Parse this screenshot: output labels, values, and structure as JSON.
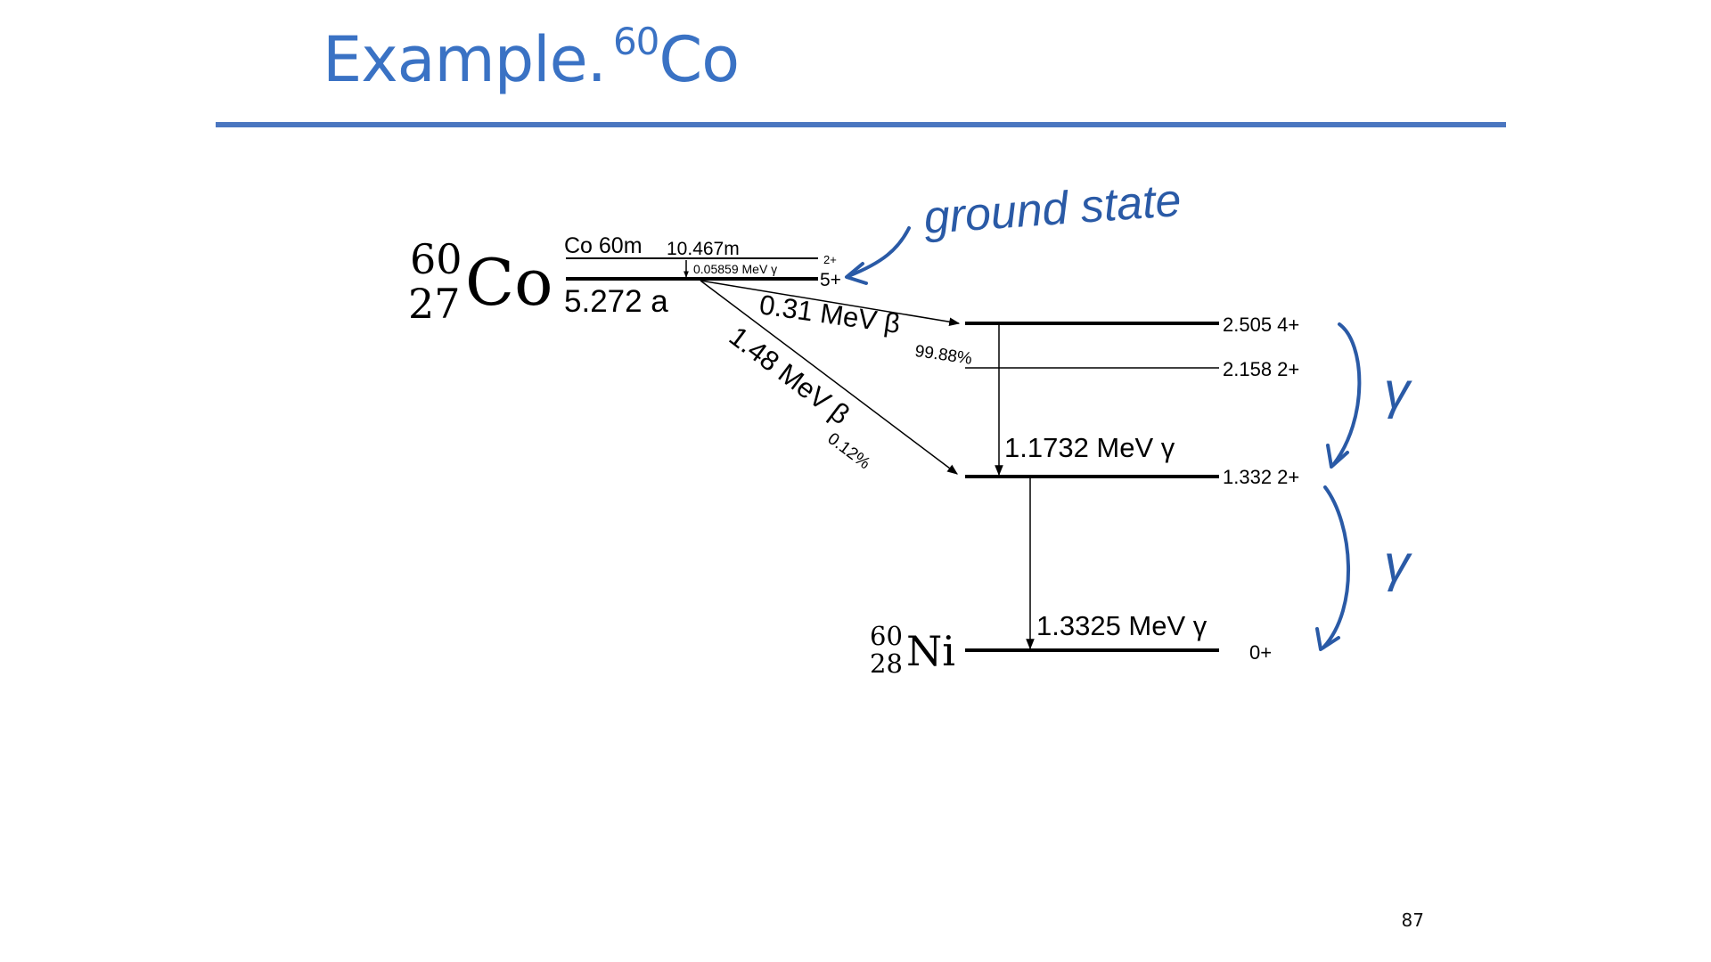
{
  "slide": {
    "title_text": "Example.",
    "title_superscript": "60",
    "title_element": "Co",
    "page_number": "87"
  },
  "parent": {
    "mass_number": "60",
    "atomic_number": "27",
    "symbol": "Co",
    "metastable_label": "Co 60m",
    "metastable_halflife": "10.467m",
    "metastable_spin": "2+",
    "it_transition": "0.05859 MeV γ",
    "ground_spin": "5+",
    "ground_halflife": "5.272 a"
  },
  "daughter": {
    "mass_number": "60",
    "atomic_number": "28",
    "symbol": "Ni"
  },
  "levels": [
    {
      "label": "2.505 4+"
    },
    {
      "label": "2.158 2+"
    },
    {
      "label": "1.332 2+"
    },
    {
      "label": "0+"
    }
  ],
  "beta_decays": [
    {
      "energy": "0.31 MeV β",
      "branch": "99.88%"
    },
    {
      "energy": "1.48 MeV β",
      "branch": "0.12%"
    }
  ],
  "gamma_transitions": [
    {
      "energy": "1.1732 MeV γ"
    },
    {
      "energy": "1.3325 MeV γ"
    }
  ],
  "annotations": {
    "ground_state_note": "ground state",
    "gamma_mark": "γ"
  },
  "colors": {
    "title": "#3a72c4",
    "rule": "#4a76c0",
    "handwriting": "#2a5aa6",
    "ink": "#000000"
  }
}
